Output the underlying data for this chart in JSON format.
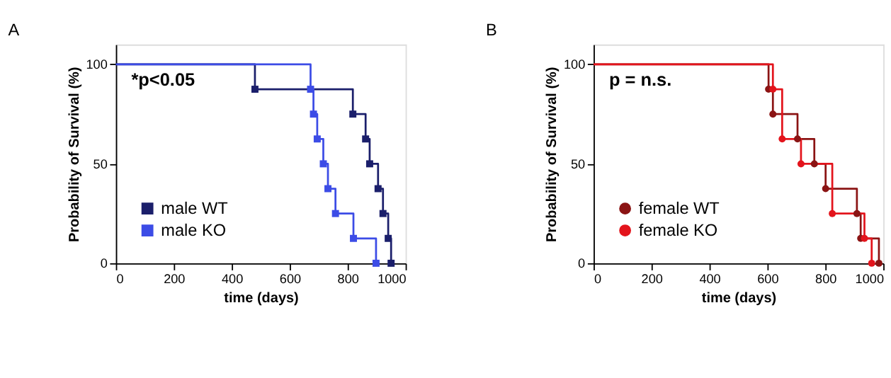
{
  "chart_data": [
    {
      "type": "step",
      "title": "A",
      "xlabel": "time (days)",
      "ylabel": "Probability of Survival (%)",
      "xlim": [
        0,
        1000
      ],
      "xticks": [
        0,
        200,
        400,
        600,
        800,
        1000
      ],
      "ylim": [
        0,
        110
      ],
      "yticks": [
        0,
        50,
        100
      ],
      "grid": false,
      "legend": "bottom left",
      "marker": "square",
      "line_style": "solid",
      "annotations": [
        "*p<0.05"
      ],
      "series": [
        {
          "name": "male WT",
          "color": "#1b1f6b",
          "x": [
            0,
            480,
            818,
            862,
            876,
            905,
            922,
            940,
            950
          ],
          "values": [
            100,
            87.5,
            75,
            62.5,
            50,
            37.5,
            25,
            12.5,
            0
          ]
        },
        {
          "name": "male KO",
          "color": "#3c4ce6",
          "x": [
            0,
            672,
            682,
            695,
            716,
            732,
            758,
            820,
            898
          ],
          "values": [
            100,
            87.5,
            75,
            62.5,
            50,
            37.5,
            25,
            12.5,
            0
          ]
        }
      ]
    },
    {
      "type": "step",
      "title": "B",
      "xlabel": "time (days)",
      "ylabel": "Probability of Survival (%)",
      "xlim": [
        0,
        1000
      ],
      "xticks": [
        0,
        200,
        400,
        600,
        800,
        1000
      ],
      "ylim": [
        0,
        110
      ],
      "yticks": [
        0,
        50,
        100
      ],
      "grid": false,
      "legend": "bottom left",
      "marker": "circle",
      "line_style": "solid",
      "annotations": [
        "p = n.s."
      ],
      "series": [
        {
          "name": "female WT",
          "color": "#8b1414",
          "x": [
            0,
            604,
            619,
            704,
            762,
            801,
            909,
            922,
            985
          ],
          "values": [
            100,
            87.5,
            75,
            62.5,
            50,
            37.5,
            25,
            12.5,
            0
          ]
        },
        {
          "name": "female KO",
          "color": "#e3141c",
          "x": [
            0,
            619,
            651,
            716,
            824,
            935,
            960
          ],
          "values": [
            100,
            87.5,
            62.5,
            50,
            25,
            12.5,
            0
          ]
        }
      ]
    }
  ]
}
